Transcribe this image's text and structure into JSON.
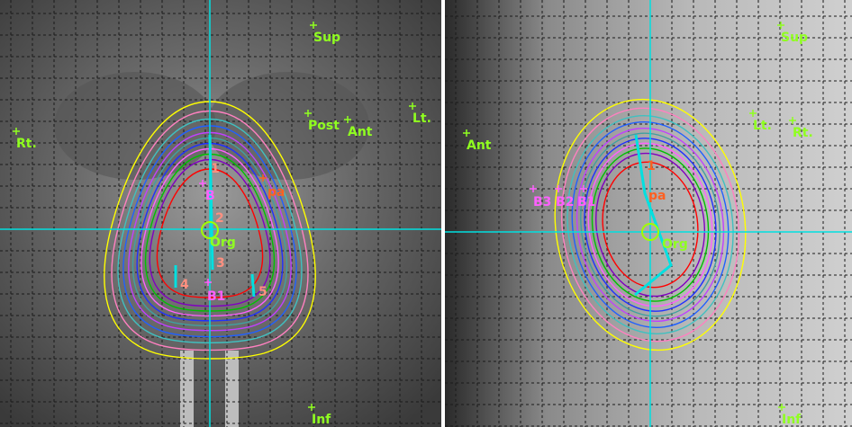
{
  "left_panel": {
    "labels": [
      "Sup",
      "Rt.",
      "Post",
      "Ant",
      "Lt.",
      "Inf"
    ],
    "markers": [
      "1",
      "B",
      "pa",
      "2",
      "Org",
      "3",
      "4",
      "B1",
      "5"
    ]
  },
  "right_panel": {
    "labels": [
      "Sup",
      "Ant",
      "Lt.",
      "Rt.",
      "Inf"
    ],
    "markers": [
      "B3",
      "B2",
      "B1",
      "1",
      "pa",
      "Org"
    ]
  }
}
